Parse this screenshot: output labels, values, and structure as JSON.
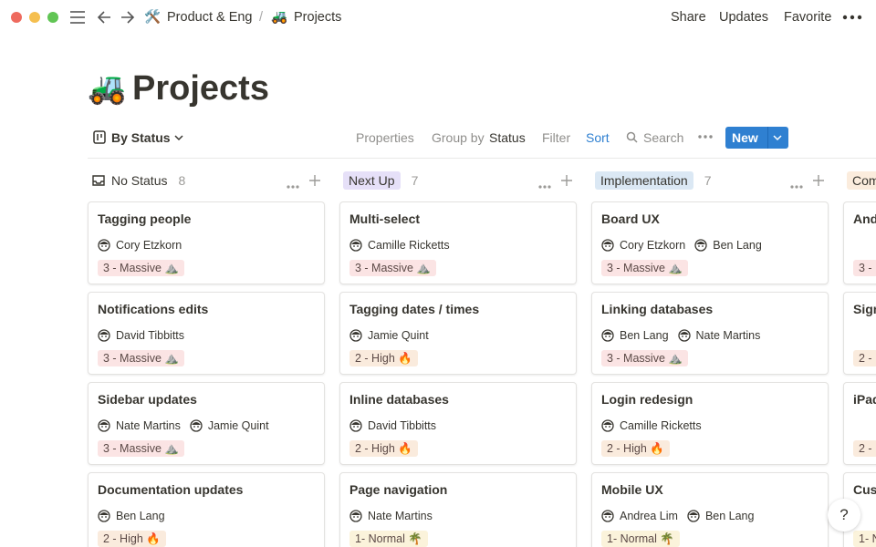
{
  "topbar": {
    "breadcrumbs": [
      {
        "icon": "🛠️",
        "label": "Product & Eng"
      },
      {
        "icon": "🚜",
        "label": "Projects"
      }
    ],
    "separator": "/",
    "actions": [
      "Share",
      "Updates",
      "Favorite"
    ]
  },
  "page": {
    "icon": "🚜",
    "title": "Projects"
  },
  "toolbar": {
    "view": "By Status",
    "properties": "Properties",
    "group_by": "Group by",
    "group_field": "Status",
    "filter": "Filter",
    "sort": "Sort",
    "search": "Search",
    "new": "New"
  },
  "columns": [
    {
      "name": "No Status",
      "count": 8,
      "cards": [
        {
          "title": "Tagging people",
          "people": [
            "Cory Etzkorn"
          ],
          "tag": {
            "text": "3 - Massive ⛰️",
            "color": "#fbe4e4"
          }
        },
        {
          "title": "Notifications edits",
          "people": [
            "David Tibbitts"
          ],
          "tag": {
            "text": "3 - Massive ⛰️",
            "color": "#fbe4e4"
          }
        },
        {
          "title": "Sidebar updates",
          "people": [
            "Nate Martins",
            "Jamie Quint"
          ],
          "tag": {
            "text": "3 - Massive ⛰️",
            "color": "#fbe4e4"
          }
        },
        {
          "title": "Documentation updates",
          "people": [
            "Ben Lang"
          ],
          "tag": {
            "text": "2 - High 🔥",
            "color": "#faebdd"
          }
        }
      ]
    },
    {
      "name": "Next Up",
      "count": 7,
      "color": "#e6e0f8",
      "cards": [
        {
          "title": "Multi-select",
          "people": [
            "Camille Ricketts"
          ],
          "tag": {
            "text": "3 - Massive ⛰️",
            "color": "#fbe4e4"
          }
        },
        {
          "title": "Tagging dates / times",
          "people": [
            "Jamie Quint"
          ],
          "tag": {
            "text": "2 - High 🔥",
            "color": "#faebdd"
          }
        },
        {
          "title": "Inline databases",
          "people": [
            "David Tibbitts"
          ],
          "tag": {
            "text": "2 - High 🔥",
            "color": "#faebdd"
          }
        },
        {
          "title": "Page navigation",
          "people": [
            "Nate Martins"
          ],
          "tag": {
            "text": "1- Normal 🌴",
            "color": "#fbf3db"
          }
        }
      ]
    },
    {
      "name": "Implementation",
      "count": 7,
      "color": "#dbe8f4",
      "cards": [
        {
          "title": "Board UX",
          "people": [
            "Cory Etzkorn",
            "Ben Lang"
          ],
          "tag": {
            "text": "3 - Massive ⛰️",
            "color": "#fbe4e4"
          }
        },
        {
          "title": "Linking databases",
          "people": [
            "Ben Lang",
            "Nate Martins"
          ],
          "tag": {
            "text": "3 - Massive ⛰️",
            "color": "#fbe4e4"
          }
        },
        {
          "title": "Login redesign",
          "people": [
            "Camille Ricketts"
          ],
          "tag": {
            "text": "2 - High 🔥",
            "color": "#faebdd"
          }
        },
        {
          "title": "Mobile UX",
          "people": [
            "Andrea Lim",
            "Ben Lang"
          ],
          "tag": {
            "text": "1- Normal 🌴",
            "color": "#fbf3db"
          }
        }
      ]
    },
    {
      "name": "Com",
      "color": "#fbecdd",
      "cards": [
        {
          "title": "And",
          "tag": {
            "text": "3 -",
            "color": "#fbe4e4"
          }
        },
        {
          "title": "Sign",
          "tag": {
            "text": "2 -",
            "color": "#faebdd"
          }
        },
        {
          "title": "iPad",
          "tag": {
            "text": "2 -",
            "color": "#faebdd"
          }
        },
        {
          "title": "Cus",
          "tag": {
            "text": "1- N",
            "color": "#fbf3db"
          }
        }
      ]
    }
  ],
  "help": "?"
}
